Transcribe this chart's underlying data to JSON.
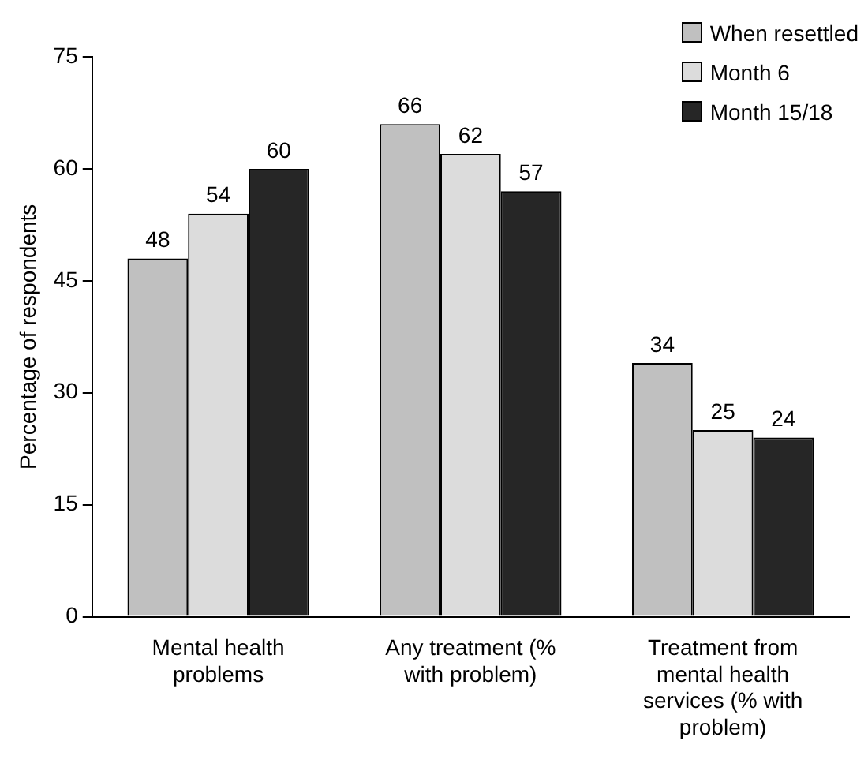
{
  "chart_data": {
    "type": "bar",
    "ylabel": "Percentage of respondents",
    "categories": [
      "Mental health problems",
      "Any treatment (% with problem)",
      "Treatment from mental health services (% with problem)"
    ],
    "series": [
      {
        "name": "When resettled",
        "color": "#c0c0c0",
        "values": [
          48,
          66,
          34
        ]
      },
      {
        "name": "Month 6",
        "color": "#dcdcdc",
        "values": [
          54,
          62,
          25
        ]
      },
      {
        "name": "Month 15/18",
        "color": "#262626",
        "values": [
          60,
          57,
          24
        ]
      }
    ],
    "ylim": [
      0,
      75
    ],
    "yticks": [
      0,
      15,
      30,
      45,
      60,
      75
    ],
    "grid": false,
    "legend": "top right",
    "data_labels": true
  }
}
